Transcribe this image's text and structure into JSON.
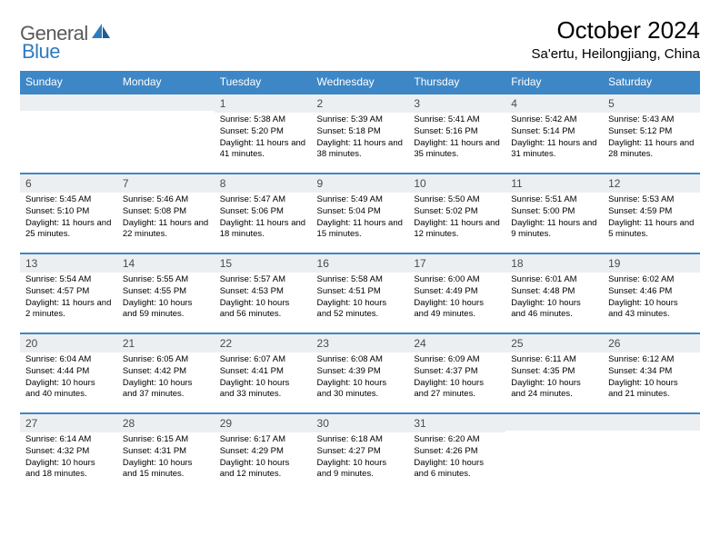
{
  "brand": {
    "part1": "General",
    "part2": "Blue"
  },
  "title": "October 2024",
  "location": "Sa'ertu, Heilongjiang, China",
  "colors": {
    "header_bg": "#3d87c7",
    "header_text": "#ffffff",
    "daynum_bg": "#eceff1",
    "row_border": "#3d87c7",
    "brand_gray": "#5a5a5a",
    "brand_blue": "#2f7bbf"
  },
  "weekdays": [
    "Sunday",
    "Monday",
    "Tuesday",
    "Wednesday",
    "Thursday",
    "Friday",
    "Saturday"
  ],
  "weeks": [
    [
      {
        "num": "",
        "lines": []
      },
      {
        "num": "",
        "lines": []
      },
      {
        "num": "1",
        "lines": [
          "Sunrise: 5:38 AM",
          "Sunset: 5:20 PM",
          "Daylight: 11 hours and 41 minutes."
        ]
      },
      {
        "num": "2",
        "lines": [
          "Sunrise: 5:39 AM",
          "Sunset: 5:18 PM",
          "Daylight: 11 hours and 38 minutes."
        ]
      },
      {
        "num": "3",
        "lines": [
          "Sunrise: 5:41 AM",
          "Sunset: 5:16 PM",
          "Daylight: 11 hours and 35 minutes."
        ]
      },
      {
        "num": "4",
        "lines": [
          "Sunrise: 5:42 AM",
          "Sunset: 5:14 PM",
          "Daylight: 11 hours and 31 minutes."
        ]
      },
      {
        "num": "5",
        "lines": [
          "Sunrise: 5:43 AM",
          "Sunset: 5:12 PM",
          "Daylight: 11 hours and 28 minutes."
        ]
      }
    ],
    [
      {
        "num": "6",
        "lines": [
          "Sunrise: 5:45 AM",
          "Sunset: 5:10 PM",
          "Daylight: 11 hours and 25 minutes."
        ]
      },
      {
        "num": "7",
        "lines": [
          "Sunrise: 5:46 AM",
          "Sunset: 5:08 PM",
          "Daylight: 11 hours and 22 minutes."
        ]
      },
      {
        "num": "8",
        "lines": [
          "Sunrise: 5:47 AM",
          "Sunset: 5:06 PM",
          "Daylight: 11 hours and 18 minutes."
        ]
      },
      {
        "num": "9",
        "lines": [
          "Sunrise: 5:49 AM",
          "Sunset: 5:04 PM",
          "Daylight: 11 hours and 15 minutes."
        ]
      },
      {
        "num": "10",
        "lines": [
          "Sunrise: 5:50 AM",
          "Sunset: 5:02 PM",
          "Daylight: 11 hours and 12 minutes."
        ]
      },
      {
        "num": "11",
        "lines": [
          "Sunrise: 5:51 AM",
          "Sunset: 5:00 PM",
          "Daylight: 11 hours and 9 minutes."
        ]
      },
      {
        "num": "12",
        "lines": [
          "Sunrise: 5:53 AM",
          "Sunset: 4:59 PM",
          "Daylight: 11 hours and 5 minutes."
        ]
      }
    ],
    [
      {
        "num": "13",
        "lines": [
          "Sunrise: 5:54 AM",
          "Sunset: 4:57 PM",
          "Daylight: 11 hours and 2 minutes."
        ]
      },
      {
        "num": "14",
        "lines": [
          "Sunrise: 5:55 AM",
          "Sunset: 4:55 PM",
          "Daylight: 10 hours and 59 minutes."
        ]
      },
      {
        "num": "15",
        "lines": [
          "Sunrise: 5:57 AM",
          "Sunset: 4:53 PM",
          "Daylight: 10 hours and 56 minutes."
        ]
      },
      {
        "num": "16",
        "lines": [
          "Sunrise: 5:58 AM",
          "Sunset: 4:51 PM",
          "Daylight: 10 hours and 52 minutes."
        ]
      },
      {
        "num": "17",
        "lines": [
          "Sunrise: 6:00 AM",
          "Sunset: 4:49 PM",
          "Daylight: 10 hours and 49 minutes."
        ]
      },
      {
        "num": "18",
        "lines": [
          "Sunrise: 6:01 AM",
          "Sunset: 4:48 PM",
          "Daylight: 10 hours and 46 minutes."
        ]
      },
      {
        "num": "19",
        "lines": [
          "Sunrise: 6:02 AM",
          "Sunset: 4:46 PM",
          "Daylight: 10 hours and 43 minutes."
        ]
      }
    ],
    [
      {
        "num": "20",
        "lines": [
          "Sunrise: 6:04 AM",
          "Sunset: 4:44 PM",
          "Daylight: 10 hours and 40 minutes."
        ]
      },
      {
        "num": "21",
        "lines": [
          "Sunrise: 6:05 AM",
          "Sunset: 4:42 PM",
          "Daylight: 10 hours and 37 minutes."
        ]
      },
      {
        "num": "22",
        "lines": [
          "Sunrise: 6:07 AM",
          "Sunset: 4:41 PM",
          "Daylight: 10 hours and 33 minutes."
        ]
      },
      {
        "num": "23",
        "lines": [
          "Sunrise: 6:08 AM",
          "Sunset: 4:39 PM",
          "Daylight: 10 hours and 30 minutes."
        ]
      },
      {
        "num": "24",
        "lines": [
          "Sunrise: 6:09 AM",
          "Sunset: 4:37 PM",
          "Daylight: 10 hours and 27 minutes."
        ]
      },
      {
        "num": "25",
        "lines": [
          "Sunrise: 6:11 AM",
          "Sunset: 4:35 PM",
          "Daylight: 10 hours and 24 minutes."
        ]
      },
      {
        "num": "26",
        "lines": [
          "Sunrise: 6:12 AM",
          "Sunset: 4:34 PM",
          "Daylight: 10 hours and 21 minutes."
        ]
      }
    ],
    [
      {
        "num": "27",
        "lines": [
          "Sunrise: 6:14 AM",
          "Sunset: 4:32 PM",
          "Daylight: 10 hours and 18 minutes."
        ]
      },
      {
        "num": "28",
        "lines": [
          "Sunrise: 6:15 AM",
          "Sunset: 4:31 PM",
          "Daylight: 10 hours and 15 minutes."
        ]
      },
      {
        "num": "29",
        "lines": [
          "Sunrise: 6:17 AM",
          "Sunset: 4:29 PM",
          "Daylight: 10 hours and 12 minutes."
        ]
      },
      {
        "num": "30",
        "lines": [
          "Sunrise: 6:18 AM",
          "Sunset: 4:27 PM",
          "Daylight: 10 hours and 9 minutes."
        ]
      },
      {
        "num": "31",
        "lines": [
          "Sunrise: 6:20 AM",
          "Sunset: 4:26 PM",
          "Daylight: 10 hours and 6 minutes."
        ]
      },
      {
        "num": "",
        "lines": []
      },
      {
        "num": "",
        "lines": []
      }
    ]
  ]
}
